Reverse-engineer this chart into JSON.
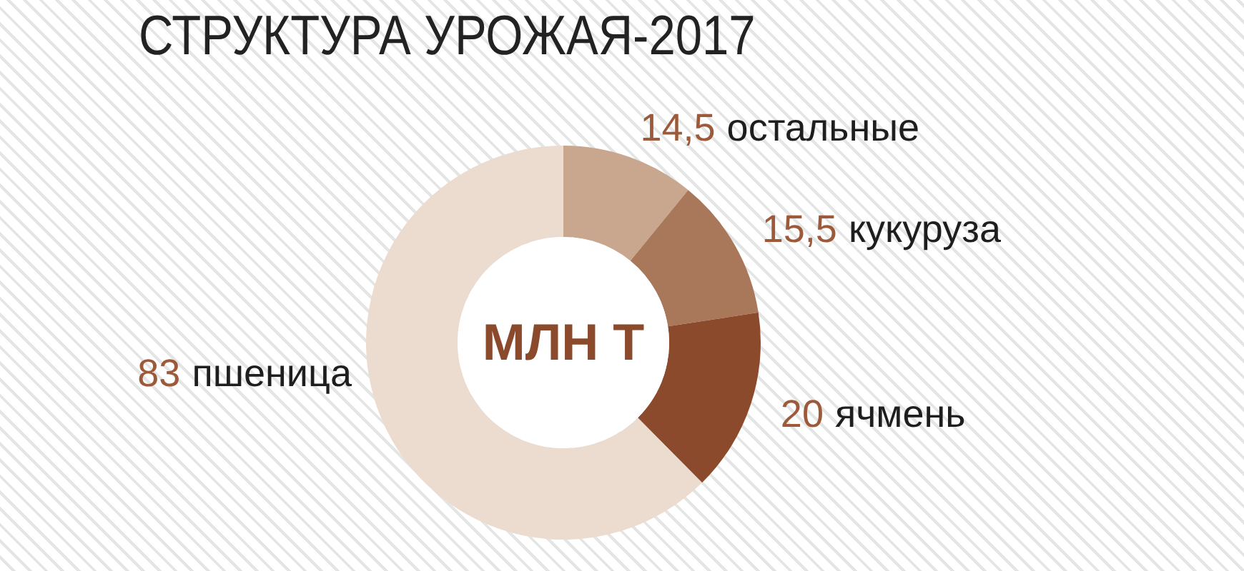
{
  "chart_data": {
    "type": "donut",
    "title": "СТРУКТУРА УРОЖАЯ-2017",
    "categories": [
      "остальные",
      "кукуруза",
      "ячмень",
      "пшеница"
    ],
    "values": [
      14.5,
      15.5,
      20,
      83
    ],
    "value_labels": [
      "14,5",
      "15,5",
      "20",
      "83"
    ],
    "colors": [
      "#c8a78e",
      "#a9775a",
      "#8b4a2c",
      "#ecdcd0"
    ],
    "annotations": [
      "МЛН Т"
    ]
  }
}
